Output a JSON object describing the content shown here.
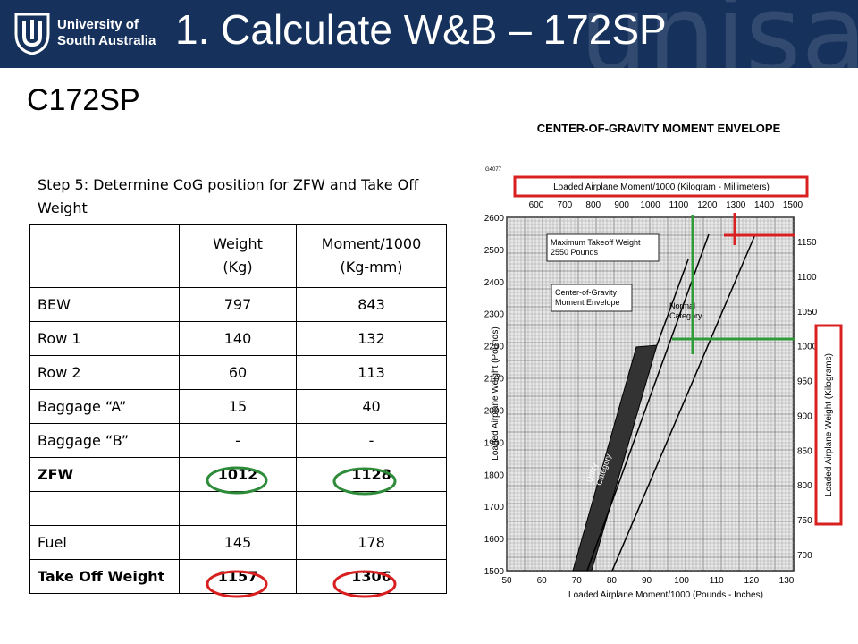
{
  "header": {
    "logo": [
      "University of",
      "South Australia"
    ],
    "watermark": "unisa",
    "title": "1. Calculate W&B – 172SP"
  },
  "subtitle": "C172SP",
  "step": "Step 5: Determine CoG position for ZFW and Take Off Weight",
  "table": {
    "header": [
      "Weight (Kg)",
      "Moment/1000 (Kg-mm)"
    ],
    "rows": [
      [
        "BEW",
        "797",
        "843"
      ],
      [
        "Row 1",
        "140",
        "132"
      ],
      [
        "Row 2",
        "60",
        "113"
      ],
      [
        "Baggage “A”",
        "15",
        "40"
      ],
      [
        "Baggage “B”",
        "-",
        "-"
      ],
      [
        "ZFW",
        "1012",
        "1128"
      ],
      [],
      [
        "Fuel",
        "145",
        "178"
      ],
      [
        "Take Off Weight",
        "1157",
        "1306"
      ]
    ]
  },
  "chart": {
    "title": "CENTER-OF-GRAVITY MOMENT ENVELOPE",
    "figure_id": "G4077",
    "top_label": "Loaded Airplane Moment/1000 (Kilogram - Millimeters)",
    "top_ticks": [
      "600",
      "700",
      "800",
      "900",
      "1000",
      "1100",
      "1200",
      "1300",
      "1400",
      "1500"
    ],
    "left_ticks": [
      "2600",
      "2500",
      "2400",
      "2300",
      "2200",
      "2100",
      "2000",
      "1900",
      "1800",
      "1700",
      "1600",
      "1500"
    ],
    "right_ticks": [
      "1150",
      "1100",
      "1050",
      "1000",
      "950",
      "900",
      "850",
      "800",
      "750",
      "700"
    ],
    "bottom_ticks": [
      "50",
      "60",
      "70",
      "80",
      "90",
      "100",
      "110",
      "120",
      "130"
    ],
    "left_label": "Loaded Airplane Weight (Pounds)",
    "right_label": "Loaded Airplane Weight (Kilograms)",
    "bottom_label": "Loaded Airplane Moment/1000 (Pounds - Inches)",
    "max_takeoff": [
      "Maximum Takeoff Weight",
      "2550 Pounds"
    ],
    "envelope": [
      "Center-of-Gravity",
      "Moment Envelope"
    ],
    "normal": [
      "Normal",
      "Category"
    ],
    "utility": [
      "Utility",
      "Category"
    ]
  }
}
